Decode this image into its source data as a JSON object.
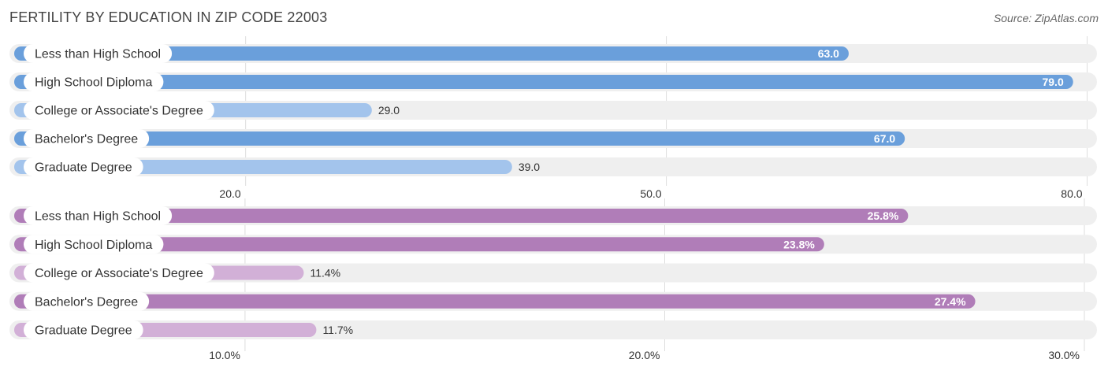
{
  "header": {
    "title": "FERTILITY BY EDUCATION IN ZIP CODE 22003",
    "source": "Source: ZipAtlas.com"
  },
  "colors": {
    "blue_dark": "#6a9fdb",
    "blue_light": "#a3c4ec",
    "purple_dark": "#b07db8",
    "purple_light": "#d2b0d7",
    "track": "#efefef",
    "grid": "#dddddd"
  },
  "chart_data": [
    {
      "type": "bar",
      "orientation": "horizontal",
      "categories": [
        "Less than High School",
        "High School Diploma",
        "College or Associate's Degree",
        "Bachelor's Degree",
        "Graduate Degree"
      ],
      "values": [
        63.0,
        79.0,
        29.0,
        67.0,
        39.0
      ],
      "value_labels": [
        "63.0",
        "79.0",
        "29.0",
        "67.0",
        "39.0"
      ],
      "ticks": [
        20.0,
        50.0,
        80.0
      ],
      "tick_labels": [
        "20.0",
        "50.0",
        "80.0"
      ],
      "xlim": [
        3.5,
        80.7
      ],
      "color_scheme": "blue"
    },
    {
      "type": "bar",
      "orientation": "horizontal",
      "categories": [
        "Less than High School",
        "High School Diploma",
        "College or Associate's Degree",
        "Bachelor's Degree",
        "Graduate Degree"
      ],
      "values": [
        25.8,
        23.8,
        11.4,
        27.4,
        11.7
      ],
      "value_labels": [
        "25.8%",
        "23.8%",
        "11.4%",
        "27.4%",
        "11.7%"
      ],
      "ticks": [
        10.0,
        20.0,
        30.0
      ],
      "tick_labels": [
        "10.0%",
        "20.0%",
        "30.0%"
      ],
      "xlim": [
        4.5,
        30.3
      ],
      "color_scheme": "purple"
    }
  ]
}
